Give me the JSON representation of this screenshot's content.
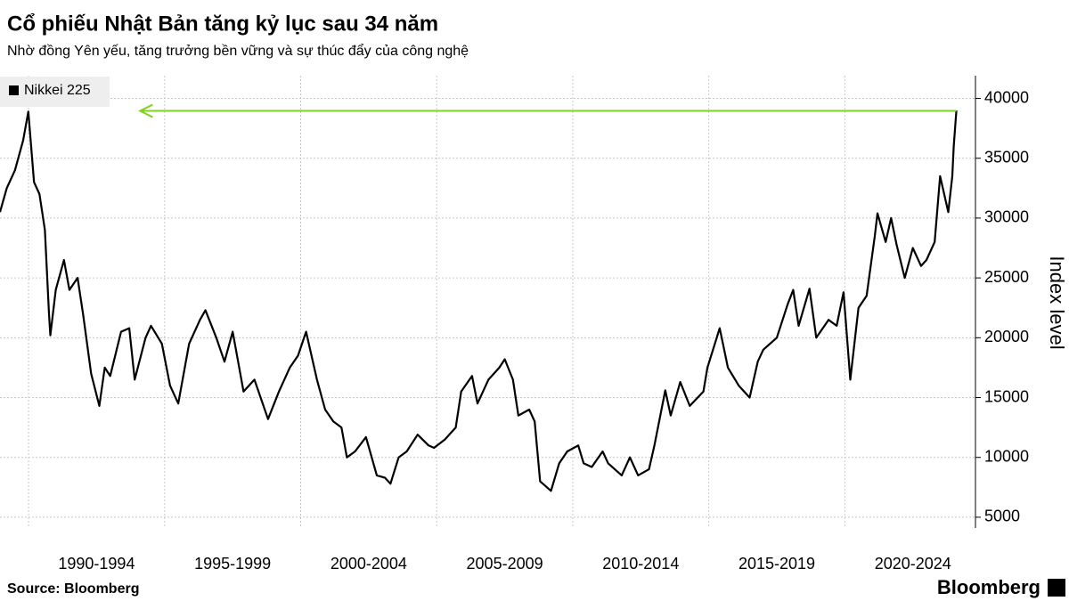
{
  "chart_data": {
    "type": "line",
    "title": "Cổ phiếu Nhật Bản tăng kỷ lục sau 34 năm",
    "subtitle": "Nhờ đồng Yên yếu, tăng trưởng bền vững và sự thúc đẩy của công nghệ",
    "y_axis_label": "Index level",
    "source": "Source: Bloomberg",
    "brand": "Bloomberg",
    "x": [
      1988.95,
      1989.2,
      1989.5,
      1989.8,
      1989.99,
      1990.2,
      1990.4,
      1990.6,
      1990.75,
      1990.8,
      1991.0,
      1991.3,
      1991.5,
      1991.8,
      1992.0,
      1992.3,
      1992.6,
      1992.8,
      1993.0,
      1993.4,
      1993.7,
      1993.9,
      1994.3,
      1994.5,
      1994.9,
      1995.2,
      1995.5,
      1995.9,
      1996.3,
      1996.5,
      1996.9,
      1997.2,
      1997.5,
      1997.9,
      1998.3,
      1998.8,
      1999.2,
      1999.6,
      1999.9,
      2000.2,
      2000.6,
      2000.9,
      2001.2,
      2001.5,
      2001.7,
      2002.0,
      2002.4,
      2002.8,
      2003.1,
      2003.3,
      2003.6,
      2003.9,
      2004.3,
      2004.7,
      2004.9,
      2005.3,
      2005.7,
      2005.9,
      2006.3,
      2006.5,
      2006.9,
      2007.3,
      2007.5,
      2007.8,
      2008.0,
      2008.4,
      2008.6,
      2008.8,
      2009.2,
      2009.5,
      2009.8,
      2010.2,
      2010.4,
      2010.7,
      2011.1,
      2011.3,
      2011.8,
      2012.1,
      2012.4,
      2012.8,
      2013.0,
      2013.4,
      2013.6,
      2013.95,
      2014.3,
      2014.8,
      2014.95,
      2015.4,
      2015.7,
      2016.1,
      2016.5,
      2016.8,
      2017.0,
      2017.5,
      2017.9,
      2018.1,
      2018.3,
      2018.7,
      2018.95,
      2019.4,
      2019.7,
      2019.95,
      2020.2,
      2020.5,
      2020.8,
      2021.1,
      2021.2,
      2021.5,
      2021.7,
      2021.9,
      2022.2,
      2022.5,
      2022.8,
      2023.0,
      2023.3,
      2023.5,
      2023.8,
      2023.95,
      2024.0,
      2024.1
    ],
    "series": [
      {
        "name": "Nikkei 225",
        "color": "#000000",
        "values": [
          30500,
          32500,
          34000,
          36500,
          38900,
          33000,
          32000,
          29000,
          22000,
          20200,
          24000,
          26500,
          24000,
          25000,
          22000,
          17000,
          14300,
          17500,
          16800,
          20500,
          20800,
          16500,
          20000,
          21000,
          19500,
          16000,
          14500,
          19500,
          21500,
          22300,
          20000,
          18000,
          20500,
          15500,
          16500,
          13200,
          15500,
          17500,
          18500,
          20500,
          16500,
          14000,
          13000,
          12500,
          10000,
          10500,
          11700,
          8500,
          8300,
          7800,
          10000,
          10500,
          11900,
          11000,
          10800,
          11500,
          12500,
          15500,
          16800,
          14500,
          16500,
          17500,
          18200,
          16500,
          13500,
          14000,
          13000,
          8000,
          7200,
          9500,
          10500,
          11000,
          9500,
          9200,
          10500,
          9500,
          8500,
          10000,
          8500,
          9000,
          11000,
          15600,
          13500,
          16300,
          14300,
          15500,
          17500,
          20800,
          17500,
          16000,
          15000,
          18000,
          19000,
          20000,
          22800,
          24000,
          21000,
          24100,
          20000,
          21500,
          21000,
          23800,
          16500,
          22500,
          23500,
          28500,
          30400,
          28000,
          30000,
          27800,
          25000,
          27500,
          26000,
          26500,
          28000,
          33500,
          30500,
          33500,
          36000,
          39000
        ]
      }
    ],
    "reference_arrow": {
      "value": 38957,
      "from": 2024.1,
      "to": 1994.1,
      "color": "#7ed321"
    },
    "xlim": [
      1988.95,
      2024.8
    ],
    "xticks": [
      {
        "value": 1992.5,
        "label": "1990-1994"
      },
      {
        "value": 1997.5,
        "label": "1995-1999"
      },
      {
        "value": 2002.5,
        "label": "2000-2004"
      },
      {
        "value": 2007.5,
        "label": "2005-2009"
      },
      {
        "value": 2012.5,
        "label": "2010-2014"
      },
      {
        "value": 2017.5,
        "label": "2015-2019"
      },
      {
        "value": 2022.5,
        "label": "2020-2024"
      }
    ],
    "xgrid": [
      1990,
      1995,
      2000,
      2005,
      2010,
      2015,
      2020
    ],
    "ylim": [
      4100,
      41900
    ],
    "yticks": [
      5000,
      10000,
      15000,
      20000,
      25000,
      30000,
      35000,
      40000
    ],
    "grid": true,
    "legend": "top-left"
  }
}
